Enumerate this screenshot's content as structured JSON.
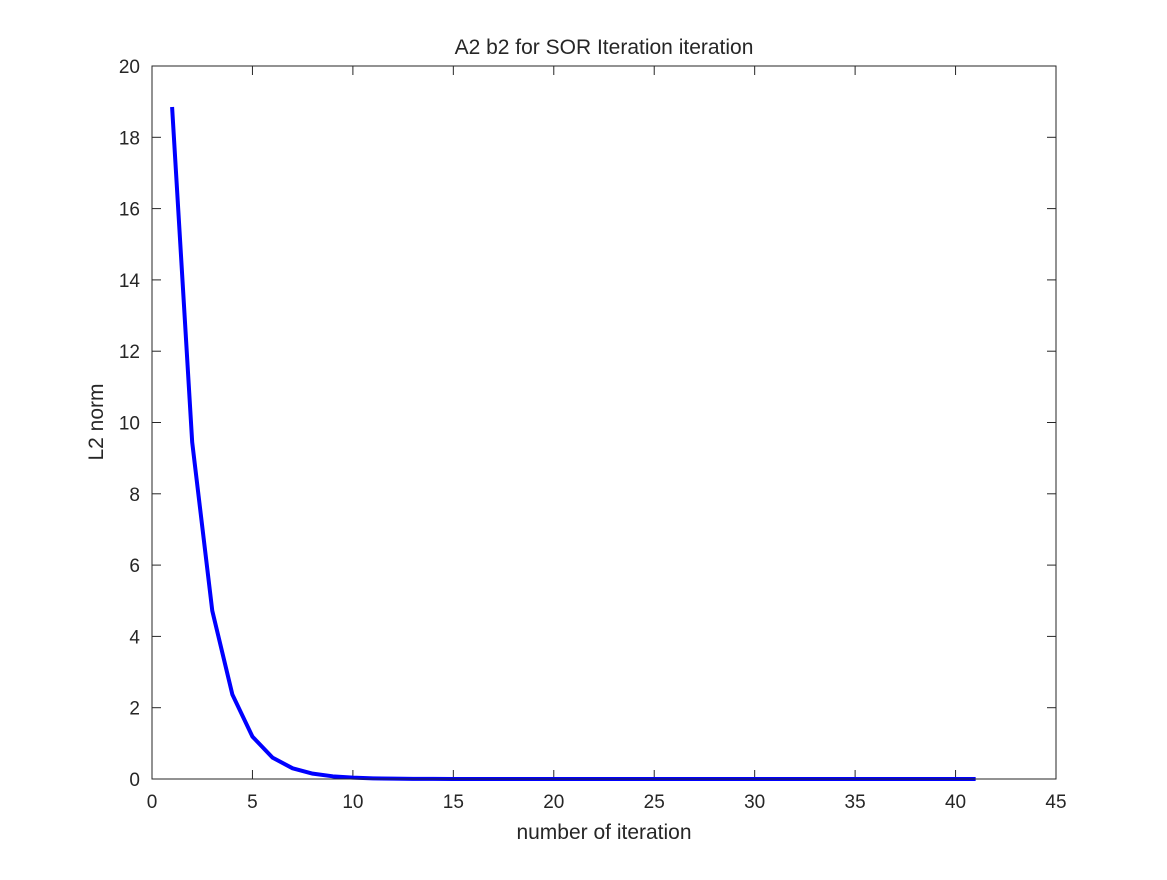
{
  "chart_data": {
    "type": "line",
    "title": "A2 b2 for SOR Iteration iteration",
    "xlabel": "number of iteration",
    "ylabel": "L2 norm",
    "xlim": [
      0,
      45
    ],
    "ylim": [
      0,
      20
    ],
    "xticks": [
      0,
      5,
      10,
      15,
      20,
      25,
      30,
      35,
      40,
      45
    ],
    "yticks": [
      0,
      2,
      4,
      6,
      8,
      10,
      12,
      14,
      16,
      18,
      20
    ],
    "grid": false,
    "legend": "none",
    "series": [
      {
        "color": "#0000ff",
        "x": [
          1,
          2,
          3,
          4,
          5,
          6,
          7,
          8,
          9,
          10,
          11,
          12,
          13,
          14,
          15,
          16,
          17,
          18,
          19,
          20,
          21,
          22,
          23,
          24,
          25,
          26,
          27,
          28,
          29,
          30,
          31,
          32,
          33,
          34,
          35,
          36,
          37,
          38,
          39,
          40,
          41
        ],
        "y": [
          18.85,
          9.45,
          4.72,
          2.37,
          1.19,
          0.6,
          0.3,
          0.15,
          0.075,
          0.038,
          0.019,
          0.01,
          0.005,
          0.0025,
          0.0012,
          0.0006,
          0.0003,
          0.00015,
          0.0001,
          0,
          0,
          0,
          0,
          0,
          0,
          0,
          0,
          0,
          0,
          0,
          0,
          0,
          0,
          0,
          0,
          0,
          0,
          0,
          0,
          0,
          0
        ]
      }
    ]
  }
}
